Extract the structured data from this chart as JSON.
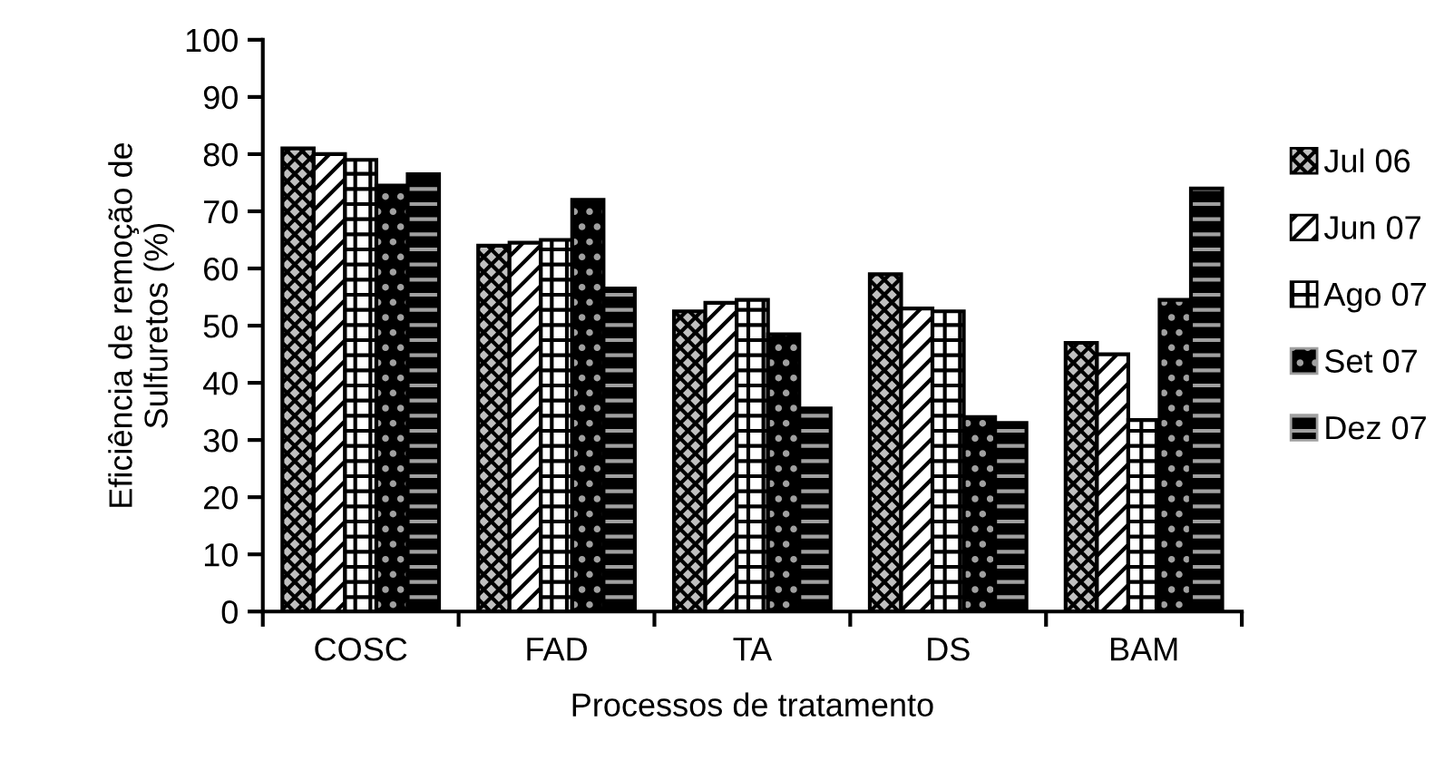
{
  "chart_data": {
    "type": "bar",
    "xlabel": "Processos de tratamento",
    "ylabel": "Eficiência de remoção de\nSulfuretos (%)",
    "categories": [
      "COSC",
      "FAD",
      "TA",
      "DS",
      "BAM"
    ],
    "series": [
      {
        "name": "Jul 06",
        "color": "#c0c0c0",
        "values": [
          81,
          64,
          52.5,
          59,
          47
        ]
      },
      {
        "name": "Jun 07",
        "color": "#ffffff",
        "values": [
          80,
          64.5,
          54,
          53,
          45
        ]
      },
      {
        "name": "Ago 07",
        "color": "#ffffff",
        "values": [
          79,
          65,
          54.5,
          52.5,
          33.5
        ]
      },
      {
        "name": "Set 07",
        "color": "#000000",
        "values": [
          74.5,
          72,
          48.5,
          34,
          54.5
        ]
      },
      {
        "name": "Dez 07",
        "color": "#000000",
        "values": [
          76.5,
          56.5,
          35.5,
          33,
          74
        ]
      }
    ],
    "ylim": [
      0,
      100
    ],
    "yticks": [
      0,
      10,
      20,
      30,
      40,
      50,
      60,
      70,
      80,
      90,
      100
    ],
    "grid": false,
    "legend": "right"
  }
}
